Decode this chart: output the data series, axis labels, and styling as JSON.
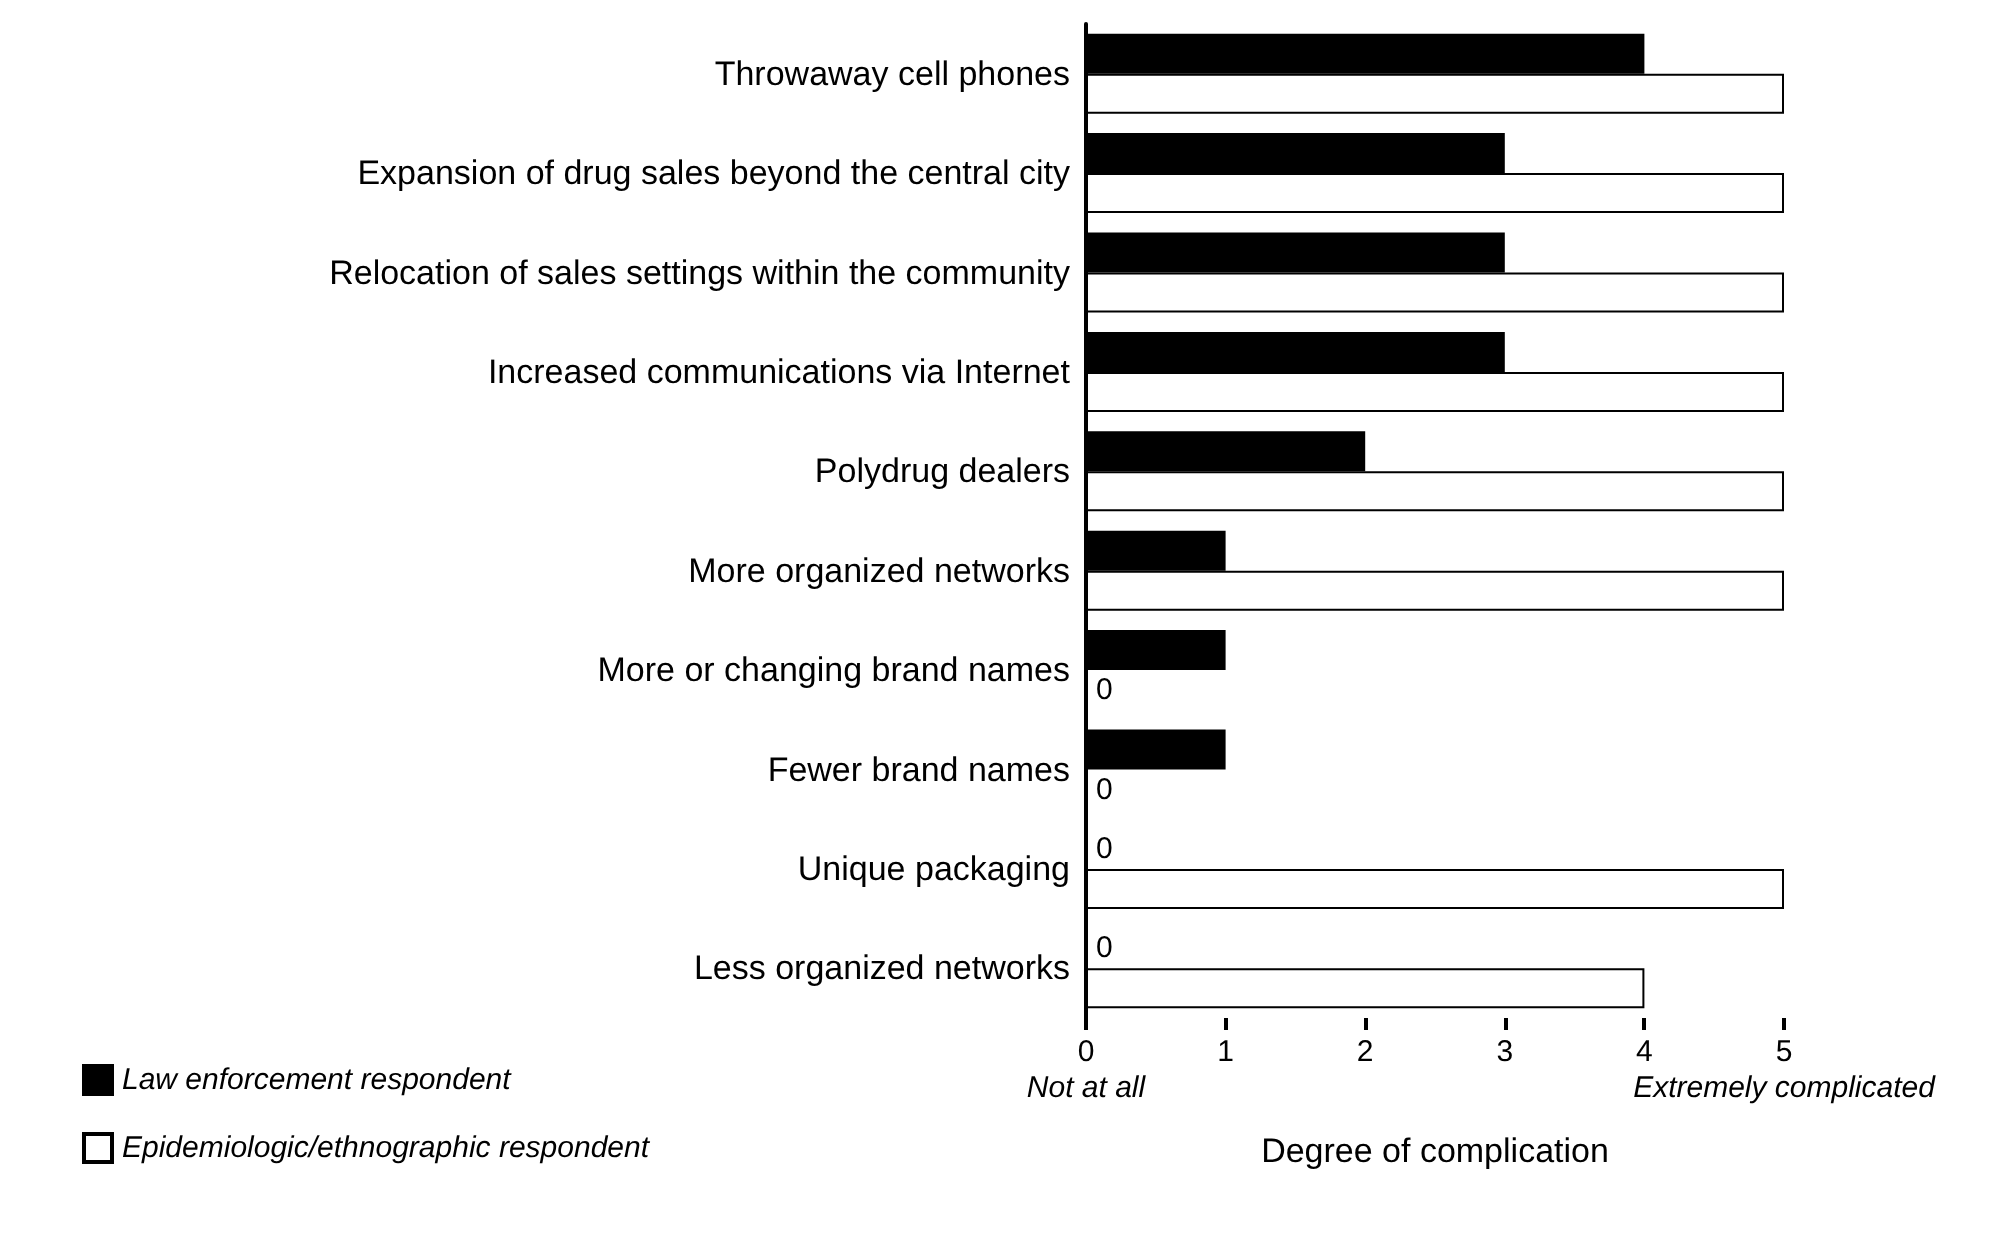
{
  "chart_data": {
    "type": "bar",
    "orientation": "horizontal",
    "xlabel": "Degree of complication",
    "categories": [
      "Throwaway cell phones",
      "Expansion of drug sales beyond the central city",
      "Relocation of sales settings within the community",
      "Increased communications via Internet",
      "Polydrug dealers",
      "More organized networks",
      "More or changing brand names",
      "Fewer brand names",
      "Unique packaging",
      "Less organized networks"
    ],
    "series": [
      {
        "name": "Law enforcement respondent",
        "color": "#000000",
        "values": [
          4,
          3,
          3,
          3,
          2,
          1,
          1,
          1,
          0,
          0
        ],
        "value_labels": [
          null,
          null,
          null,
          null,
          null,
          null,
          null,
          null,
          "0",
          "0"
        ]
      },
      {
        "name": "Epidemiologic/ethnographic respondent",
        "color": "#ffffff",
        "values": [
          5,
          5,
          5,
          5,
          5,
          5,
          0,
          0,
          5,
          4
        ],
        "value_labels": [
          null,
          null,
          null,
          null,
          null,
          null,
          "0",
          "0",
          null,
          null
        ]
      }
    ],
    "xlim": [
      0,
      5
    ],
    "xticks": [
      0,
      1,
      2,
      3,
      4,
      5
    ],
    "annotations": [
      "Not at all",
      "Extremely complicated"
    ],
    "grid": false,
    "legend": "bottom left"
  }
}
